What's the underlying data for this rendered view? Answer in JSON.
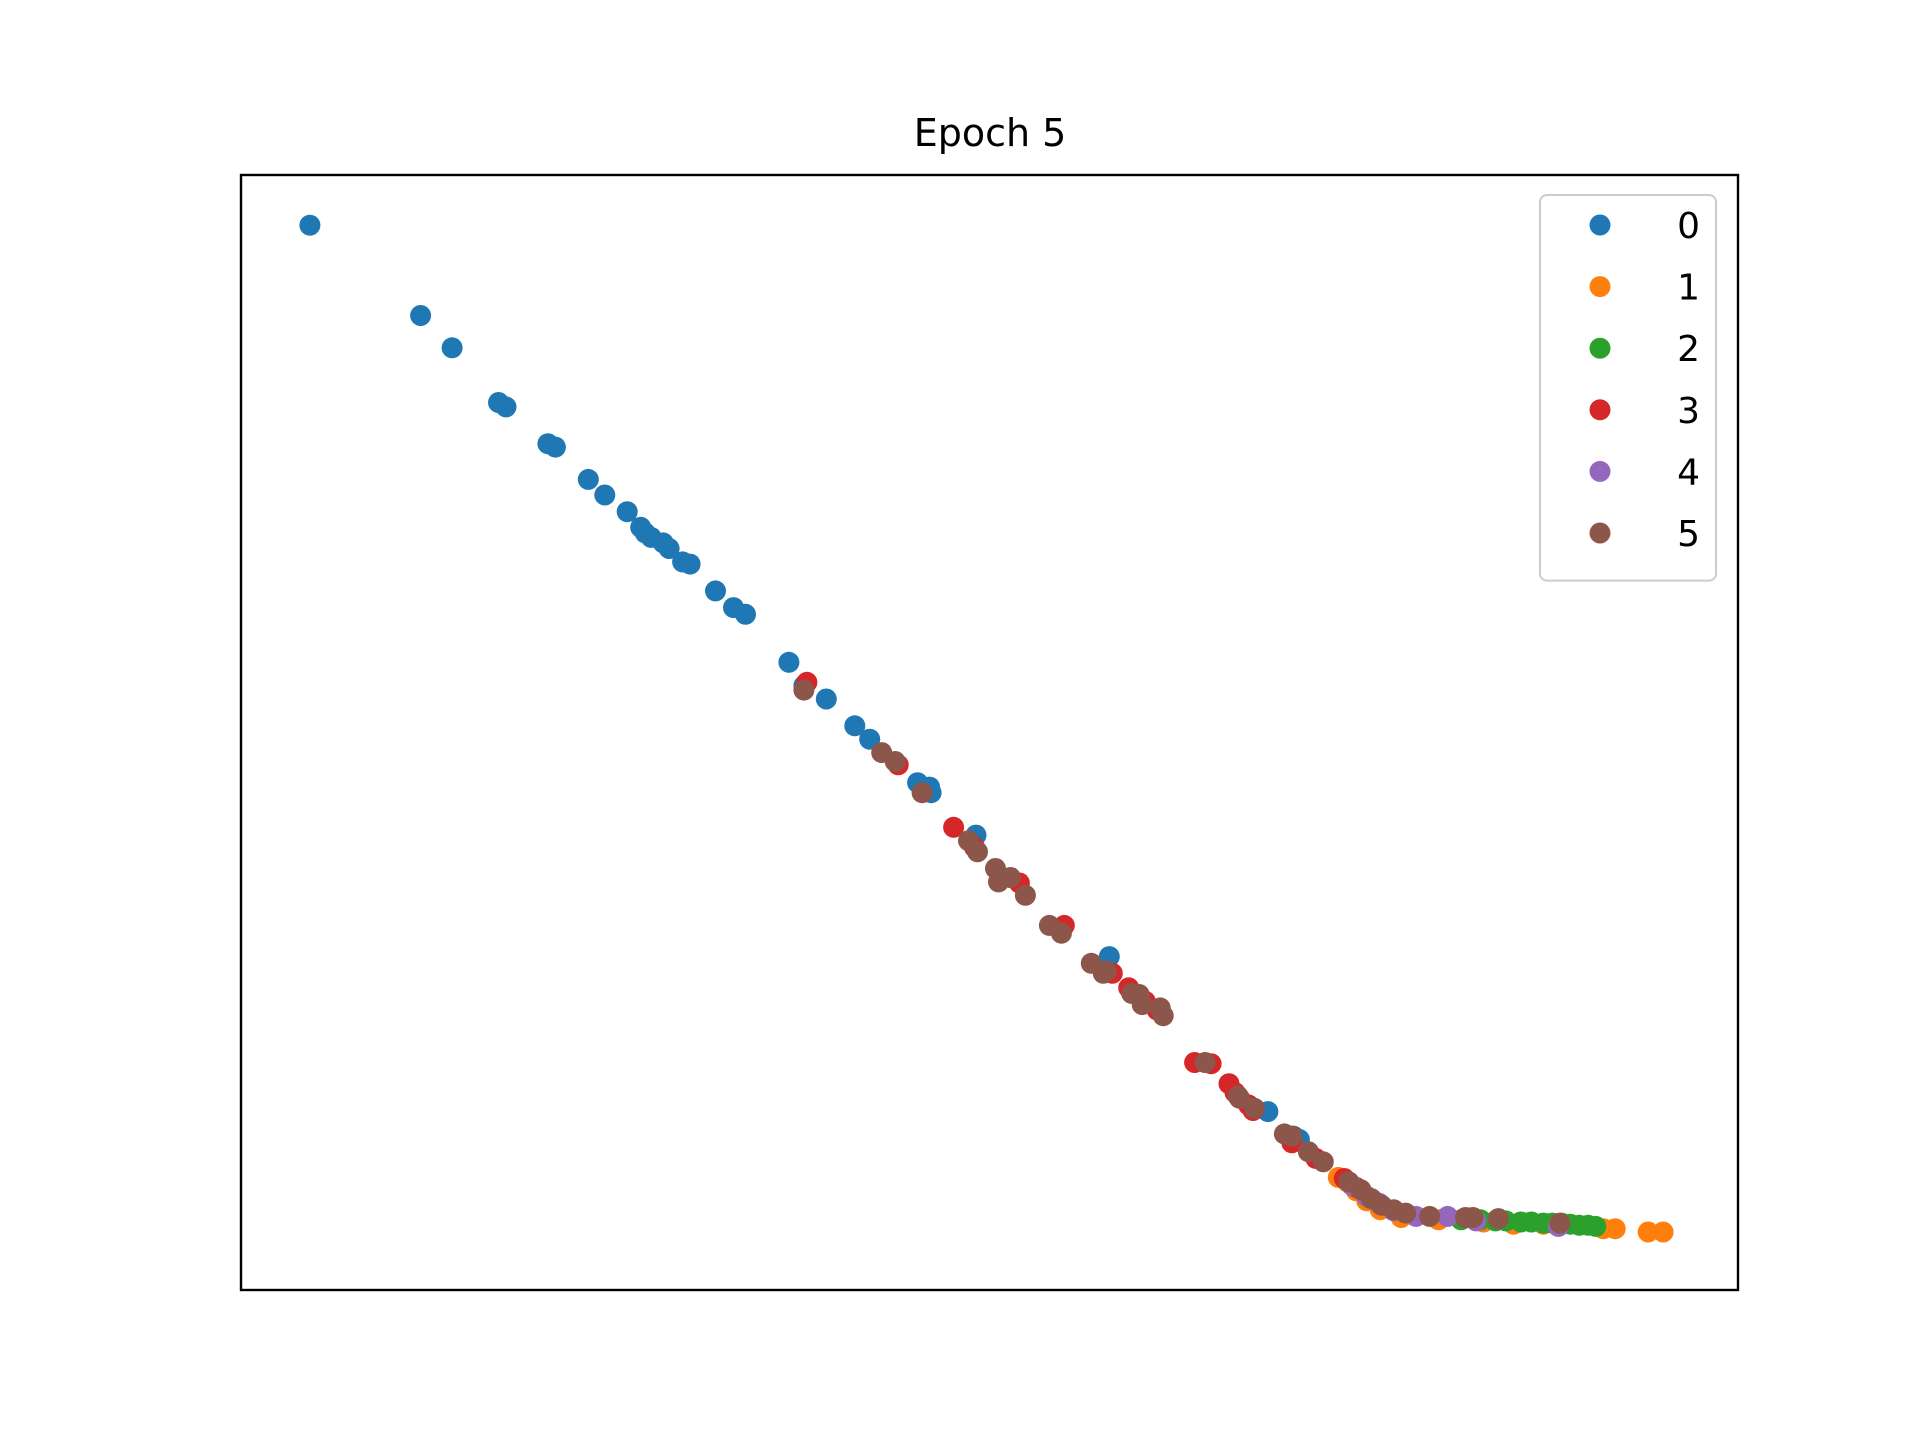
{
  "chart_data": {
    "type": "scatter",
    "title": "Epoch 5",
    "xlabel": "",
    "ylabel": "",
    "xlim": [
      0,
      1000
    ],
    "ylim": [
      0,
      1000
    ],
    "axes_ticks": false,
    "grid": false,
    "legend": {
      "position": "top-right"
    },
    "series": [
      {
        "name": "0",
        "color": "#1f77b4",
        "points": [
          [
            46,
            955
          ],
          [
            120,
            874
          ],
          [
            141,
            845
          ],
          [
            172,
            796
          ],
          [
            177,
            792
          ],
          [
            205,
            759
          ],
          [
            210,
            756
          ],
          [
            232,
            727
          ],
          [
            243,
            713
          ],
          [
            258,
            698
          ],
          [
            267,
            684
          ],
          [
            270,
            679
          ],
          [
            274,
            675
          ],
          [
            282,
            670
          ],
          [
            286,
            665
          ],
          [
            295,
            653
          ],
          [
            300,
            651
          ],
          [
            317,
            627
          ],
          [
            329,
            612
          ],
          [
            337,
            606
          ],
          [
            366,
            563
          ],
          [
            376,
            542
          ],
          [
            391,
            530
          ],
          [
            410,
            506
          ],
          [
            420,
            494
          ],
          [
            452,
            455
          ],
          [
            460,
            451
          ],
          [
            461,
            446
          ],
          [
            491,
            408
          ],
          [
            580,
            299
          ],
          [
            686,
            160
          ],
          [
            703,
            138
          ],
          [
            707,
            135
          ]
        ]
      },
      {
        "name": "1",
        "color": "#ff7f0e",
        "points": [
          [
            733,
            101
          ],
          [
            739,
            97
          ],
          [
            745,
            89
          ],
          [
            752,
            80
          ],
          [
            761,
            72
          ],
          [
            775,
            65
          ],
          [
            800,
            63
          ],
          [
            830,
            61
          ],
          [
            850,
            59
          ],
          [
            870,
            59
          ],
          [
            910,
            55
          ],
          [
            918,
            55
          ],
          [
            940,
            52
          ],
          [
            950,
            52
          ]
        ]
      },
      {
        "name": "2",
        "color": "#2ca02c",
        "points": [
          [
            815,
            63
          ],
          [
            828,
            63
          ],
          [
            838,
            62
          ],
          [
            845,
            62
          ],
          [
            855,
            61
          ],
          [
            862,
            61
          ],
          [
            870,
            60
          ],
          [
            876,
            60
          ],
          [
            882,
            60
          ],
          [
            888,
            59
          ],
          [
            894,
            58
          ],
          [
            900,
            58
          ],
          [
            905,
            57
          ]
        ]
      },
      {
        "name": "3",
        "color": "#d62728",
        "points": [
          [
            378,
            545
          ],
          [
            439,
            471
          ],
          [
            476,
            415
          ],
          [
            490,
            397
          ],
          [
            520,
            365
          ],
          [
            550,
            327
          ],
          [
            582,
            284
          ],
          [
            593,
            271
          ],
          [
            604,
            259
          ],
          [
            612,
            251
          ],
          [
            637,
            204
          ],
          [
            648,
            203
          ],
          [
            660,
            185
          ],
          [
            664,
            177
          ],
          [
            673,
            166
          ],
          [
            676,
            161
          ],
          [
            702,
            132
          ],
          [
            718,
            118
          ],
          [
            737,
            100
          ],
          [
            745,
            92
          ]
        ]
      },
      {
        "name": "4",
        "color": "#9467bd",
        "points": [
          [
            742,
            94
          ],
          [
            752,
            84
          ],
          [
            760,
            78
          ],
          [
            770,
            71
          ],
          [
            785,
            66
          ],
          [
            806,
            66
          ],
          [
            825,
            62
          ],
          [
            880,
            57
          ]
        ]
      },
      {
        "name": "5",
        "color": "#8c564b",
        "points": [
          [
            376,
            538
          ],
          [
            428,
            482
          ],
          [
            437,
            474
          ],
          [
            455,
            446
          ],
          [
            486,
            403
          ],
          [
            492,
            393
          ],
          [
            504,
            378
          ],
          [
            506,
            366
          ],
          [
            514,
            370
          ],
          [
            524,
            354
          ],
          [
            540,
            327
          ],
          [
            548,
            320
          ],
          [
            568,
            293
          ],
          [
            576,
            284
          ],
          [
            578,
            286
          ],
          [
            595,
            266
          ],
          [
            600,
            265
          ],
          [
            602,
            256
          ],
          [
            614,
            253
          ],
          [
            616,
            246
          ],
          [
            644,
            204
          ],
          [
            666,
            174
          ],
          [
            667,
            172
          ],
          [
            677,
            163
          ],
          [
            697,
            140
          ],
          [
            702,
            138
          ],
          [
            713,
            124
          ],
          [
            723,
            115
          ],
          [
            740,
            97
          ],
          [
            748,
            90
          ],
          [
            755,
            82
          ],
          [
            762,
            76
          ],
          [
            770,
            72
          ],
          [
            778,
            69
          ],
          [
            794,
            66
          ],
          [
            818,
            65
          ],
          [
            823,
            65
          ],
          [
            840,
            64
          ],
          [
            881,
            60
          ]
        ]
      }
    ]
  }
}
